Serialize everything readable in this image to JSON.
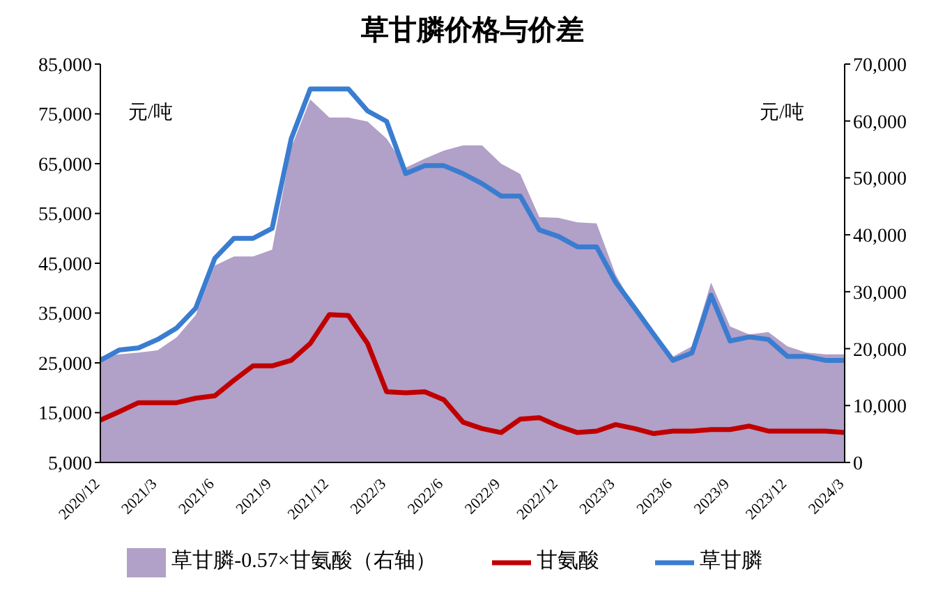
{
  "chart_data": {
    "type": "line",
    "title": "草甘膦价格与价差",
    "categories": [
      "2020/12",
      null,
      null,
      "2021/3",
      null,
      null,
      "2021/6",
      null,
      null,
      "2021/9",
      null,
      null,
      "2021/12",
      null,
      null,
      "2022/3",
      null,
      null,
      "2022/6",
      null,
      null,
      "2022/9",
      null,
      null,
      "2022/12",
      null,
      null,
      "2023/3",
      null,
      null,
      "2023/6",
      null,
      null,
      "2023/9",
      null,
      null,
      "2023/12",
      null,
      null,
      "2024/3"
    ],
    "series": [
      {
        "name": "草甘膦-0.57×甘氨酸（右轴）",
        "type": "area",
        "axis": "y2",
        "color": "#b1a0c7",
        "values": [
          18600,
          19000,
          19300,
          19700,
          22000,
          25900,
          34600,
          36200,
          36200,
          37400,
          55300,
          63800,
          60600,
          60600,
          59900,
          56900,
          51800,
          53400,
          54800,
          55700,
          55700,
          52500,
          50700,
          43100,
          43000,
          42200,
          42000,
          33000,
          27100,
          22500,
          18600,
          20400,
          31600,
          23900,
          22500,
          22900,
          20400,
          19300,
          19000,
          19000
        ]
      },
      {
        "name": "甘氨酸",
        "color": "#c00000",
        "values": [
          13500,
          15200,
          17000,
          17000,
          17000,
          17900,
          18400,
          21500,
          24400,
          24400,
          25500,
          28900,
          34700,
          34500,
          28900,
          19200,
          19000,
          19200,
          17600,
          13100,
          11800,
          11000,
          13700,
          14000,
          12300,
          11000,
          11300,
          12600,
          11800,
          10800,
          11300,
          11300,
          11600,
          11600,
          12300,
          11300,
          11300,
          11300,
          11300,
          11000
        ]
      },
      {
        "name": "草甘膦",
        "color": "#3a7dd0",
        "values": [
          25500,
          27600,
          28000,
          29700,
          32000,
          36000,
          46000,
          50000,
          50000,
          52000,
          70000,
          80000,
          80000,
          80000,
          75600,
          73500,
          63000,
          64600,
          64600,
          63000,
          61000,
          58500,
          58500,
          51700,
          50400,
          48300,
          48300,
          41200,
          36000,
          30700,
          25500,
          27000,
          38600,
          29400,
          30200,
          29700,
          26300,
          26300,
          25500,
          25500
        ]
      }
    ],
    "ylim": [
      5000,
      85000
    ],
    "yticks": [
      {
        "value": 5000,
        "label": "5,000"
      },
      {
        "value": 15000,
        "label": "15,000"
      },
      {
        "value": 25000,
        "label": "25,000"
      },
      {
        "value": 35000,
        "label": "35,000"
      },
      {
        "value": 45000,
        "label": "45,000"
      },
      {
        "value": 55000,
        "label": "55,000"
      },
      {
        "value": 65000,
        "label": "65,000"
      },
      {
        "value": 75000,
        "label": "75,000"
      },
      {
        "value": 85000,
        "label": "85,000"
      }
    ],
    "y2lim": [
      0,
      70000
    ],
    "y2ticks": [
      0,
      {
        "value": 10000,
        "label": "10,000"
      },
      {
        "value": 20000,
        "label": "20,000"
      },
      {
        "value": 30000,
        "label": "30,000"
      },
      {
        "value": 40000,
        "label": "40,000"
      },
      {
        "value": 50000,
        "label": "50,000"
      },
      {
        "value": 60000,
        "label": "60,000"
      },
      {
        "value": 70000,
        "label": "70,000"
      }
    ],
    "annotations": [
      "元/吨",
      "元/吨"
    ],
    "legend": "bottom",
    "grid": false,
    "marker": "none",
    "line_style": "solid"
  }
}
